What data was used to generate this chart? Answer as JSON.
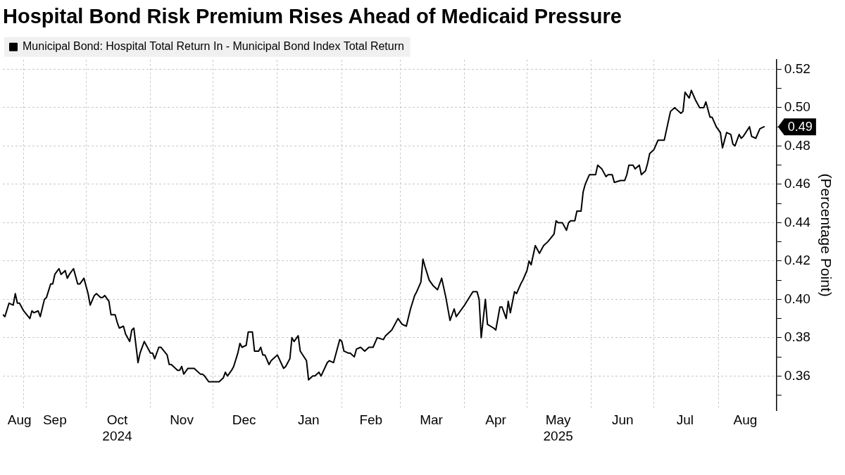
{
  "chart_data": {
    "type": "line",
    "title": "Hospital Bond Risk Premium Rises Ahead of Medicaid Pressure",
    "ylabel": "(Percentage Point)",
    "x": [
      "2024-08-22",
      "2024-08-23",
      "2024-08-25",
      "2024-08-27",
      "2024-08-28",
      "2024-08-29",
      "2024-08-30",
      "2024-09-01",
      "2024-09-04",
      "2024-09-05",
      "2024-09-06",
      "2024-09-08",
      "2024-09-09",
      "2024-09-11",
      "2024-09-12",
      "2024-09-14",
      "2024-09-15",
      "2024-09-16",
      "2024-09-18",
      "2024-09-19",
      "2024-09-21",
      "2024-09-22",
      "2024-09-23",
      "2024-09-25",
      "2024-09-27",
      "2024-09-28",
      "2024-09-30",
      "2024-10-02",
      "2024-10-03",
      "2024-10-05",
      "2024-10-06",
      "2024-10-08",
      "2024-10-09",
      "2024-10-10",
      "2024-10-12",
      "2024-10-13",
      "2024-10-15",
      "2024-10-16",
      "2024-10-17",
      "2024-10-19",
      "2024-10-20",
      "2024-10-22",
      "2024-10-23",
      "2024-10-24",
      "2024-10-26",
      "2024-10-27",
      "2024-10-29",
      "2024-10-30",
      "2024-11-01",
      "2024-11-02",
      "2024-11-03",
      "2024-11-05",
      "2024-11-06",
      "2024-11-09",
      "2024-11-10",
      "2024-11-11",
      "2024-11-14",
      "2024-11-15",
      "2024-11-16",
      "2024-11-17",
      "2024-11-19",
      "2024-11-20",
      "2024-11-22",
      "2024-11-23",
      "2024-11-25",
      "2024-11-26",
      "2024-11-27",
      "2024-11-29",
      "2024-12-01",
      "2024-12-02",
      "2024-12-04",
      "2024-12-06",
      "2024-12-07",
      "2024-12-08",
      "2024-12-10",
      "2024-12-11",
      "2024-12-13",
      "2024-12-14",
      "2024-12-15",
      "2024-12-17",
      "2024-12-18",
      "2024-12-20",
      "2024-12-21",
      "2024-12-23",
      "2024-12-24",
      "2024-12-25",
      "2024-12-26",
      "2024-12-28",
      "2024-12-29",
      "2025-01-01",
      "2025-01-04",
      "2025-01-05",
      "2025-01-07",
      "2025-01-08",
      "2025-01-09",
      "2025-01-11",
      "2025-01-12",
      "2025-01-15",
      "2025-01-16",
      "2025-01-18",
      "2025-01-19",
      "2025-01-21",
      "2025-01-22",
      "2025-01-25",
      "2025-01-26",
      "2025-01-28",
      "2025-01-31",
      "2025-02-01",
      "2025-02-02",
      "2025-02-04",
      "2025-02-05",
      "2025-02-07",
      "2025-02-08",
      "2025-02-10",
      "2025-02-12",
      "2025-02-14",
      "2025-02-16",
      "2025-02-18",
      "2025-02-21",
      "2025-02-22",
      "2025-02-25",
      "2025-02-28",
      "2025-03-02",
      "2025-03-04",
      "2025-03-06",
      "2025-03-08",
      "2025-03-09",
      "2025-03-11",
      "2025-03-12",
      "2025-03-13",
      "2025-03-15",
      "2025-03-17",
      "2025-03-18",
      "2025-03-19",
      "2025-03-21",
      "2025-03-23",
      "2025-03-25",
      "2025-03-27",
      "2025-03-28",
      "2025-03-30",
      "2025-04-01",
      "2025-04-05",
      "2025-04-07",
      "2025-04-08",
      "2025-04-09",
      "2025-04-11",
      "2025-04-12",
      "2025-04-15",
      "2025-04-16",
      "2025-04-18",
      "2025-04-19",
      "2025-04-21",
      "2025-04-22",
      "2025-04-23",
      "2025-04-25",
      "2025-04-26",
      "2025-04-28",
      "2025-04-29",
      "2025-05-01",
      "2025-05-02",
      "2025-05-03",
      "2025-05-05",
      "2025-05-07",
      "2025-05-09",
      "2025-05-11",
      "2025-05-14",
      "2025-05-15",
      "2025-05-16",
      "2025-05-18",
      "2025-05-20",
      "2025-05-21",
      "2025-05-22",
      "2025-05-24",
      "2025-05-25",
      "2025-05-27",
      "2025-05-28",
      "2025-05-29",
      "2025-05-31",
      "2025-06-03",
      "2025-06-04",
      "2025-06-06",
      "2025-06-08",
      "2025-06-09",
      "2025-06-11",
      "2025-06-12",
      "2025-06-15",
      "2025-06-17",
      "2025-06-18",
      "2025-06-19",
      "2025-06-21",
      "2025-06-22",
      "2025-06-24",
      "2025-06-25",
      "2025-06-27",
      "2025-06-28",
      "2025-06-29",
      "2025-07-01",
      "2025-07-03",
      "2025-07-04",
      "2025-07-06",
      "2025-07-09",
      "2025-07-11",
      "2025-07-12",
      "2025-07-14",
      "2025-07-15",
      "2025-07-16",
      "2025-07-18",
      "2025-07-19",
      "2025-07-21",
      "2025-07-23",
      "2025-07-25",
      "2025-07-26",
      "2025-07-28",
      "2025-07-29",
      "2025-07-31",
      "2025-08-02",
      "2025-08-03",
      "2025-08-05",
      "2025-08-07",
      "2025-08-08",
      "2025-08-09",
      "2025-08-11",
      "2025-08-12",
      "2025-08-13",
      "2025-08-16",
      "2025-08-17",
      "2025-08-19",
      "2025-08-21",
      "2025-08-23"
    ],
    "series": [
      {
        "name": "Municipal Bond: Hospital Total Return In - Municipal Bond Index Total Return",
        "color": "#000000",
        "values": [
          0.392,
          0.391,
          0.398,
          0.397,
          0.403,
          0.398,
          0.398,
          0.394,
          0.39,
          0.394,
          0.393,
          0.394,
          0.391,
          0.4,
          0.401,
          0.408,
          0.408,
          0.413,
          0.416,
          0.413,
          0.415,
          0.411,
          0.413,
          0.416,
          0.408,
          0.408,
          0.411,
          0.403,
          0.397,
          0.402,
          0.403,
          0.401,
          0.401,
          0.402,
          0.399,
          0.392,
          0.392,
          0.388,
          0.385,
          0.386,
          0.382,
          0.378,
          0.384,
          0.385,
          0.367,
          0.372,
          0.378,
          0.376,
          0.372,
          0.372,
          0.369,
          0.375,
          0.375,
          0.371,
          0.366,
          0.366,
          0.363,
          0.363,
          0.365,
          0.361,
          0.364,
          0.364,
          0.364,
          0.363,
          0.361,
          0.361,
          0.36,
          0.357,
          0.357,
          0.357,
          0.357,
          0.359,
          0.362,
          0.36,
          0.363,
          0.365,
          0.372,
          0.377,
          0.375,
          0.376,
          0.383,
          0.383,
          0.373,
          0.373,
          0.375,
          0.371,
          0.371,
          0.366,
          0.368,
          0.371,
          0.364,
          0.365,
          0.369,
          0.38,
          0.378,
          0.381,
          0.373,
          0.368,
          0.358,
          0.36,
          0.36,
          0.362,
          0.36,
          0.367,
          0.368,
          0.367,
          0.379,
          0.378,
          0.373,
          0.372,
          0.372,
          0.37,
          0.374,
          0.375,
          0.373,
          0.375,
          0.375,
          0.38,
          0.379,
          0.381,
          0.384,
          0.39,
          0.387,
          0.386,
          0.395,
          0.402,
          0.404,
          0.409,
          0.421,
          0.417,
          0.41,
          0.407,
          0.406,
          0.405,
          0.411,
          0.401,
          0.389,
          0.395,
          0.391,
          0.394,
          0.397,
          0.404,
          0.404,
          0.4,
          0.38,
          0.4,
          0.387,
          0.385,
          0.384,
          0.396,
          0.396,
          0.39,
          0.399,
          0.393,
          0.404,
          0.403,
          0.408,
          0.41,
          0.415,
          0.42,
          0.418,
          0.428,
          0.424,
          0.428,
          0.43,
          0.434,
          0.441,
          0.44,
          0.44,
          0.436,
          0.44,
          0.441,
          0.441,
          0.446,
          0.446,
          0.456,
          0.46,
          0.465,
          0.465,
          0.47,
          0.468,
          0.464,
          0.465,
          0.465,
          0.461,
          0.462,
          0.462,
          0.465,
          0.47,
          0.47,
          0.468,
          0.47,
          0.465,
          0.467,
          0.471,
          0.476,
          0.478,
          0.483,
          0.483,
          0.483,
          0.498,
          0.5,
          0.499,
          0.497,
          0.498,
          0.508,
          0.505,
          0.509,
          0.504,
          0.5,
          0.5,
          0.503,
          0.495,
          0.495,
          0.49,
          0.487,
          0.479,
          0.487,
          0.486,
          0.481,
          0.48,
          0.486,
          0.484,
          0.485,
          0.49,
          0.485,
          0.484,
          0.489,
          0.49
        ]
      }
    ],
    "xlim": [
      "2024-08-22",
      "2025-08-29"
    ],
    "xticks": [
      {
        "value": "2024-08-30",
        "label": "Aug"
      },
      {
        "value": "2024-09-01",
        "label": null
      },
      {
        "value": "2024-09-16",
        "label": "Sep"
      },
      {
        "value": "2024-10-01",
        "label": null
      },
      {
        "value": "2024-10-16",
        "label": "Oct\n2024"
      },
      {
        "value": "2024-11-01",
        "label": null
      },
      {
        "value": "2024-11-16",
        "label": "Nov"
      },
      {
        "value": "2024-12-01",
        "label": null
      },
      {
        "value": "2024-12-16",
        "label": "Dec"
      },
      {
        "value": "2025-01-01",
        "label": null
      },
      {
        "value": "2025-01-16",
        "label": "Jan"
      },
      {
        "value": "2025-02-01",
        "label": null
      },
      {
        "value": "2025-02-15",
        "label": "Feb"
      },
      {
        "value": "2025-03-01",
        "label": null
      },
      {
        "value": "2025-03-16",
        "label": "Mar"
      },
      {
        "value": "2025-04-01",
        "label": null
      },
      {
        "value": "2025-04-16",
        "label": "Apr"
      },
      {
        "value": "2025-05-01",
        "label": null
      },
      {
        "value": "2025-05-16",
        "label": "May\n2025"
      },
      {
        "value": "2025-06-01",
        "label": null
      },
      {
        "value": "2025-06-16",
        "label": "Jun"
      },
      {
        "value": "2025-07-01",
        "label": null
      },
      {
        "value": "2025-07-16",
        "label": "Jul"
      },
      {
        "value": "2025-08-01",
        "label": null
      },
      {
        "value": "2025-08-14",
        "label": "Aug"
      }
    ],
    "ylim": [
      0.342,
      0.525
    ],
    "yticks": [
      {
        "value": 0.35,
        "label": null
      },
      {
        "value": 0.36,
        "label": "0.36"
      },
      {
        "value": 0.37,
        "label": null
      },
      {
        "value": 0.38,
        "label": "0.38"
      },
      {
        "value": 0.39,
        "label": null
      },
      {
        "value": 0.4,
        "label": "0.40"
      },
      {
        "value": 0.41,
        "label": null
      },
      {
        "value": 0.42,
        "label": "0.42"
      },
      {
        "value": 0.43,
        "label": null
      },
      {
        "value": 0.44,
        "label": "0.44"
      },
      {
        "value": 0.45,
        "label": null
      },
      {
        "value": 0.46,
        "label": "0.46"
      },
      {
        "value": 0.47,
        "label": null
      },
      {
        "value": 0.48,
        "label": "0.48"
      },
      {
        "value": 0.49,
        "label": null
      },
      {
        "value": 0.5,
        "label": "0.50"
      },
      {
        "value": 0.51,
        "label": null
      },
      {
        "value": 0.52,
        "label": "0.52"
      }
    ],
    "grid": true,
    "legend": "top left",
    "marker": "none",
    "line_style": "solid",
    "annotations": [
      {
        "text": "0.49",
        "x": "2025-08-23",
        "y": 0.49
      }
    ]
  }
}
